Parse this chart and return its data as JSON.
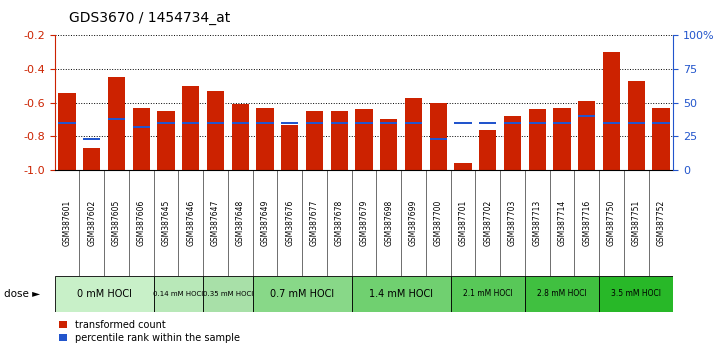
{
  "title": "GDS3670 / 1454734_at",
  "samples": [
    "GSM387601",
    "GSM387602",
    "GSM387605",
    "GSM387606",
    "GSM387645",
    "GSM387646",
    "GSM387647",
    "GSM387648",
    "GSM387649",
    "GSM387676",
    "GSM387677",
    "GSM387678",
    "GSM387679",
    "GSM387698",
    "GSM387699",
    "GSM387700",
    "GSM387701",
    "GSM387702",
    "GSM387703",
    "GSM387713",
    "GSM387714",
    "GSM387716",
    "GSM387750",
    "GSM387751",
    "GSM387752"
  ],
  "transformed_count": [
    -0.54,
    -0.87,
    -0.45,
    -0.63,
    -0.65,
    -0.5,
    -0.53,
    -0.61,
    -0.63,
    -0.73,
    -0.65,
    -0.65,
    -0.64,
    -0.7,
    -0.57,
    -0.6,
    -0.96,
    -0.76,
    -0.68,
    -0.64,
    -0.63,
    -0.59,
    -0.3,
    -0.47,
    -0.63
  ],
  "percentile_rank": [
    35,
    23,
    38,
    32,
    35,
    35,
    35,
    35,
    35,
    35,
    35,
    35,
    35,
    35,
    35,
    23,
    35,
    35,
    35,
    35,
    35,
    40,
    35,
    35,
    35
  ],
  "group_boundaries": [
    0,
    4,
    6,
    8,
    12,
    16,
    19,
    22,
    25
  ],
  "group_labels": [
    "0 mM HOCl",
    "0.14 mM HOCl",
    "0.35 mM HOCl",
    "0.7 mM HOCl",
    "1.4 mM HOCl",
    "2.1 mM HOCl",
    "2.8 mM HOCl",
    "3.5 mM HOCl"
  ],
  "group_colors": [
    "#c8f0c8",
    "#b8e8b8",
    "#a8e0a8",
    "#88d888",
    "#70d070",
    "#58c858",
    "#40c040",
    "#28b828"
  ],
  "bar_color": "#cc2200",
  "blue_color": "#2255cc",
  "ylim_left": [
    -1.0,
    -0.2
  ],
  "ylim_right": [
    0,
    100
  ],
  "yticks_left": [
    -1.0,
    -0.8,
    -0.6,
    -0.4,
    -0.2
  ],
  "yticks_right": [
    0,
    25,
    50,
    75,
    100
  ],
  "sample_bg_color": "#d0d0d0",
  "plot_bg_color": "#ffffff",
  "legend_labels": [
    "transformed count",
    "percentile rank within the sample"
  ]
}
